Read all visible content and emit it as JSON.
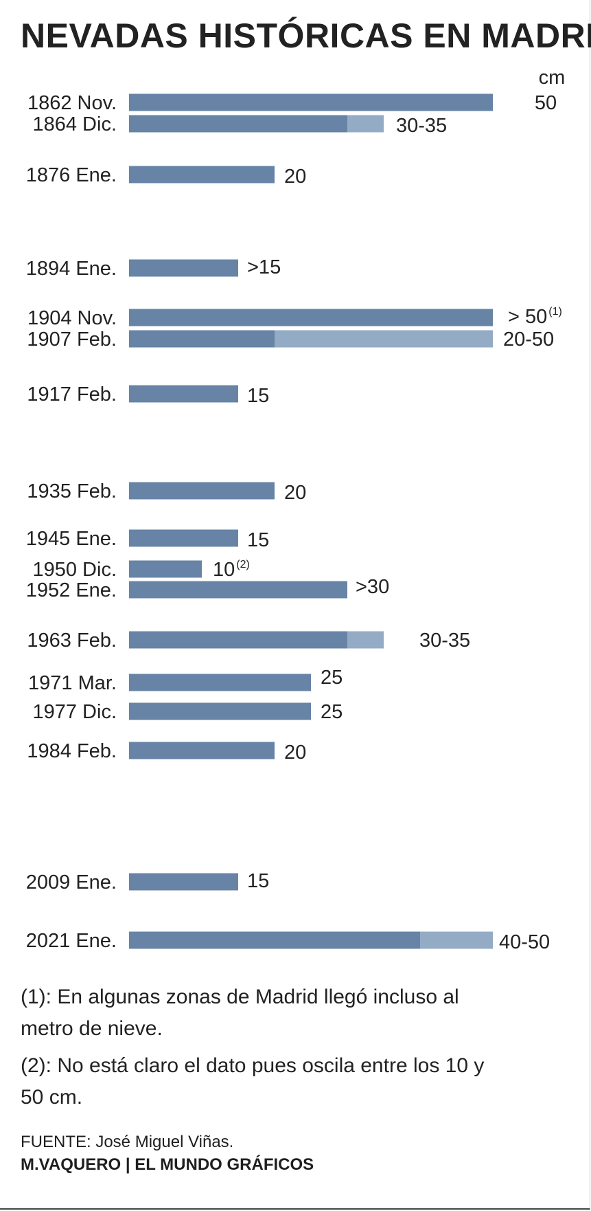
{
  "chart_data": {
    "type": "bar",
    "orientation": "horizontal",
    "title": "NEVADAS HISTÓRICAS EN MADRID",
    "unit": "cm",
    "xlim": [
      0,
      50
    ],
    "grid": false,
    "colors": {
      "minimum": "#6784a6",
      "range": "#94abc5"
    },
    "bars": [
      {
        "category": "1862 Nov.",
        "min": 50,
        "max": 50,
        "value_label": "50"
      },
      {
        "category": "1864 Dic.",
        "min": 30,
        "max": 35,
        "value_label": "30-35"
      },
      {
        "category": "1876 Ene.",
        "min": 20,
        "max": 20,
        "value_label": "20"
      },
      {
        "category": "1894 Ene.",
        "min": 15,
        "max": 15,
        "value_label": ">15"
      },
      {
        "category": "1904 Nov.",
        "min": 50,
        "max": 50,
        "value_label": "> 50",
        "note_ref": "(1)"
      },
      {
        "category": "1907 Feb.",
        "min": 20,
        "max": 50,
        "value_label": "20-50"
      },
      {
        "category": "1917 Feb.",
        "min": 15,
        "max": 15,
        "value_label": "15"
      },
      {
        "category": "1935 Feb.",
        "min": 20,
        "max": 20,
        "value_label": "20"
      },
      {
        "category": "1945 Ene.",
        "min": 15,
        "max": 15,
        "value_label": "15"
      },
      {
        "category": "1950 Dic.",
        "min": 10,
        "max": 10,
        "value_label": "10",
        "note_ref": "(2)"
      },
      {
        "category": "1952 Ene.",
        "min": 30,
        "max": 30,
        "value_label": ">30"
      },
      {
        "category": "1963 Feb.",
        "min": 30,
        "max": 35,
        "value_label": "30-35"
      },
      {
        "category": "1971 Mar.",
        "min": 25,
        "max": 25,
        "value_label": "25"
      },
      {
        "category": "1977 Dic.",
        "min": 25,
        "max": 25,
        "value_label": "25"
      },
      {
        "category": "1984 Feb.",
        "min": 20,
        "max": 20,
        "value_label": "20"
      },
      {
        "category": "2009 Ene.",
        "min": 15,
        "max": 15,
        "value_label": "15"
      },
      {
        "category": "2021 Ene.",
        "min": 40,
        "max": 50,
        "value_label": "40-50"
      }
    ]
  },
  "notes": {
    "note1": "(1): En algunas zonas de Madrid llegó incluso al metro de nieve.",
    "note2": "(2): No está claro el dato pues oscila entre los 10 y 50 cm."
  },
  "footer": {
    "source": "FUENTE: José Miguel Viñas.",
    "credit": "M.VAQUERO | EL MUNDO GRÁFICOS"
  }
}
